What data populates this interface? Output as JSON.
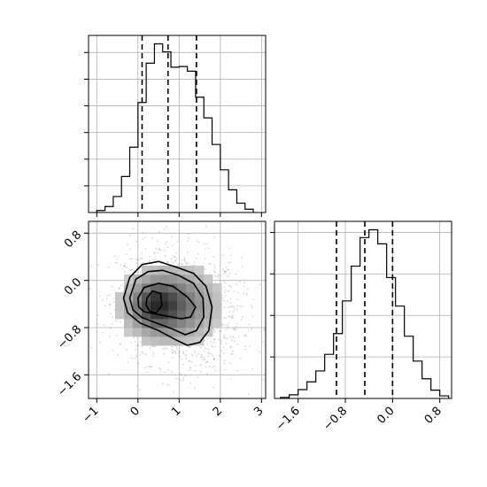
{
  "chart_data": [
    {
      "type": "histogram",
      "variable_index": 0,
      "xlim": [
        -1.2,
        3.1
      ],
      "bin_edges": [
        -1.0,
        -0.8,
        -0.6,
        -0.4,
        -0.2,
        0.0,
        0.2,
        0.4,
        0.6,
        0.8,
        1.0,
        1.2,
        1.4,
        1.6,
        1.8,
        2.0,
        2.2,
        2.4,
        2.6,
        2.8
      ],
      "counts": [
        3,
        9,
        24,
        54,
        98,
        165,
        224,
        253,
        241,
        218,
        219,
        212,
        173,
        142,
        102,
        64,
        34,
        14,
        5
      ],
      "quantiles": [
        0.1,
        0.73,
        1.42
      ],
      "x_ticks": [
        -1,
        0,
        1,
        2,
        3
      ],
      "x_tick_labels": [
        "−1",
        "0",
        "1",
        "2",
        "3"
      ],
      "y_tick_positions": [
        40,
        80,
        120,
        160,
        200,
        240
      ],
      "grid": true
    },
    {
      "type": "histogram",
      "variable_index": 1,
      "xlim": [
        -2.0,
        1.0
      ],
      "bin_edges": [
        -1.9,
        -1.75,
        -1.6,
        -1.45,
        -1.3,
        -1.15,
        -1.0,
        -0.85,
        -0.7,
        -0.55,
        -0.4,
        -0.25,
        -0.1,
        0.05,
        0.2,
        0.35,
        0.5,
        0.65,
        0.8,
        0.95
      ],
      "counts": [
        2,
        7,
        17,
        32,
        53,
        85,
        125,
        188,
        255,
        310,
        325,
        298,
        233,
        178,
        120,
        72,
        38,
        16,
        5
      ],
      "quantiles": [
        -0.95,
        -0.47,
        0.0
      ],
      "x_ticks": [
        -1.6,
        -0.8,
        0.0,
        0.8
      ],
      "x_tick_labels": [
        "−1.6",
        "−0.8",
        "0.0",
        "0.8"
      ],
      "y_tick_positions": [
        80,
        160,
        240,
        320
      ],
      "grid": true
    },
    {
      "type": "heatmap",
      "variables": [
        0,
        1
      ],
      "xlim": [
        -1.2,
        3.1
      ],
      "ylim": [
        -2.0,
        1.0
      ],
      "x_ticks": [
        -1,
        0,
        1,
        2,
        3
      ],
      "x_tick_labels": [
        "−1",
        "0",
        "1",
        "2",
        "3"
      ],
      "y_ticks": [
        -1.6,
        -0.8,
        0.0,
        0.8
      ],
      "y_tick_labels": [
        "−1.6",
        "−0.8",
        "0.0",
        "0.8"
      ],
      "density_center": [
        0.4,
        -0.42
      ],
      "grid": true,
      "contours": [
        [
          [
            -0.35,
            -0.3
          ],
          [
            -0.2,
            0.05
          ],
          [
            0.1,
            0.27
          ],
          [
            0.5,
            0.32
          ],
          [
            0.95,
            0.22
          ],
          [
            1.35,
            0.12
          ],
          [
            1.65,
            -0.1
          ],
          [
            1.8,
            -0.45
          ],
          [
            1.72,
            -0.85
          ],
          [
            1.5,
            -1.05
          ],
          [
            1.2,
            -1.1
          ],
          [
            0.9,
            -1.0
          ],
          [
            0.5,
            -0.85
          ],
          [
            0.05,
            -0.72
          ],
          [
            -0.25,
            -0.55
          ],
          [
            -0.35,
            -0.3
          ]
        ],
        [
          [
            -0.2,
            -0.3
          ],
          [
            -0.05,
            0.02
          ],
          [
            0.25,
            0.15
          ],
          [
            0.6,
            0.17
          ],
          [
            1.0,
            0.08
          ],
          [
            1.35,
            -0.05
          ],
          [
            1.58,
            -0.3
          ],
          [
            1.6,
            -0.62
          ],
          [
            1.42,
            -0.85
          ],
          [
            1.15,
            -0.92
          ],
          [
            0.82,
            -0.82
          ],
          [
            0.45,
            -0.72
          ],
          [
            0.1,
            -0.63
          ],
          [
            -0.12,
            -0.5
          ],
          [
            -0.2,
            -0.3
          ]
        ],
        [
          [
            0.0,
            -0.3
          ],
          [
            0.15,
            -0.12
          ],
          [
            0.5,
            -0.05
          ],
          [
            0.85,
            -0.1
          ],
          [
            1.2,
            -0.28
          ],
          [
            1.4,
            -0.45
          ],
          [
            1.28,
            -0.62
          ],
          [
            1.05,
            -0.65
          ],
          [
            0.82,
            -0.62
          ],
          [
            0.5,
            -0.58
          ],
          [
            0.15,
            -0.53
          ],
          [
            0.02,
            -0.45
          ],
          [
            0.0,
            -0.3
          ]
        ],
        [
          [
            0.22,
            -0.3
          ],
          [
            0.35,
            -0.18
          ],
          [
            0.55,
            -0.22
          ],
          [
            0.58,
            -0.42
          ],
          [
            0.45,
            -0.55
          ],
          [
            0.28,
            -0.52
          ],
          [
            0.2,
            -0.42
          ],
          [
            0.22,
            -0.3
          ]
        ]
      ]
    }
  ]
}
